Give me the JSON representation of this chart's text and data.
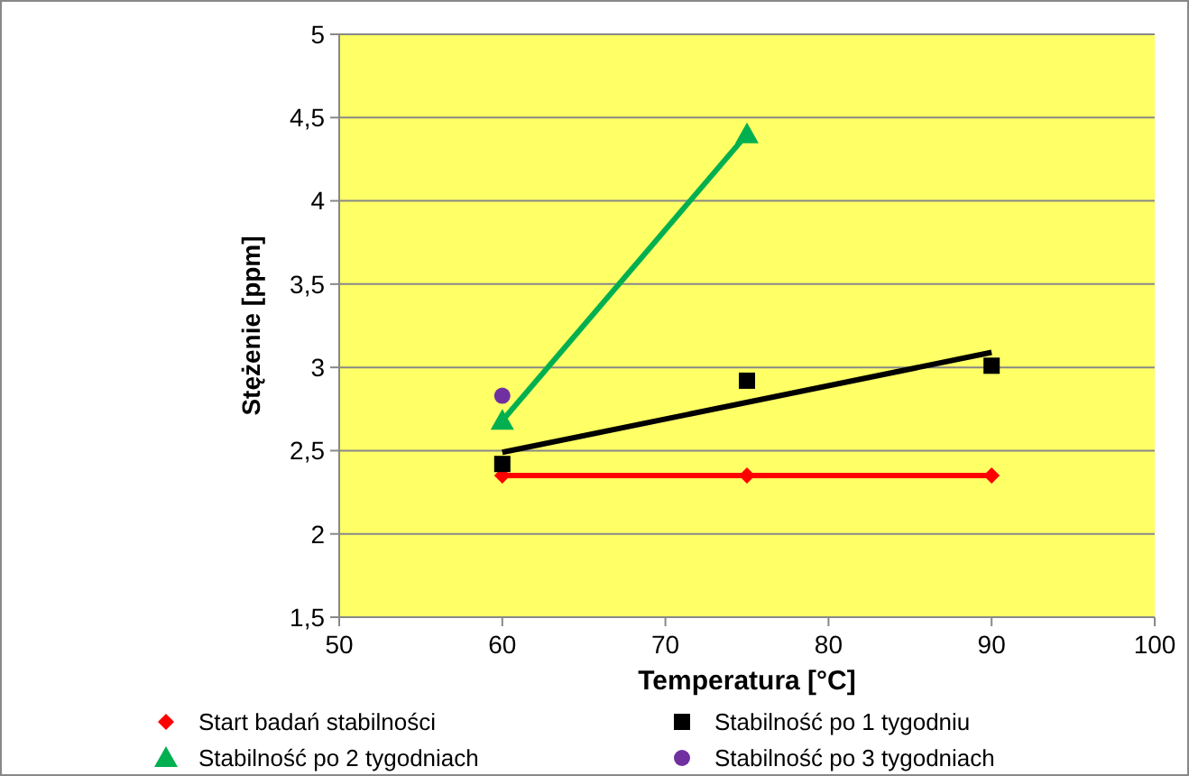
{
  "chart_data": {
    "type": "scatter",
    "xlabel": "Temperatura [°C]",
    "ylabel": "Stężenie [ppm]",
    "x": [
      60,
      75,
      90
    ],
    "xlim": [
      50,
      100
    ],
    "xticks": [
      50,
      60,
      70,
      80,
      90,
      100
    ],
    "ylim": [
      1.5,
      5
    ],
    "yticks": [
      {
        "value": 1.5,
        "label": "1,5"
      },
      {
        "value": 2,
        "label": "2"
      },
      {
        "value": 2.5,
        "label": "2,5"
      },
      {
        "value": 3,
        "label": "3"
      },
      {
        "value": 3.5,
        "label": "3,5"
      },
      {
        "value": 4,
        "label": "4"
      },
      {
        "value": 4.5,
        "label": "4,5"
      },
      {
        "value": 5,
        "label": "5"
      }
    ],
    "grid": "y",
    "legend": "bottom",
    "series": [
      {
        "name": "Start badań stabilności",
        "type": "line",
        "color": "#ff0000",
        "marker": "diamond",
        "values": [
          2.35,
          2.35,
          2.35
        ]
      },
      {
        "name": "Stabilność po 1 tygodniu",
        "color": "#000000",
        "marker": "square",
        "values": [
          2.42,
          2.92,
          3.01
        ]
      },
      {
        "name": "Stabilność po 2 tygodniach",
        "type": "line",
        "color": "#00b050",
        "marker": "triangle",
        "x": [
          60,
          75
        ],
        "values": [
          2.68,
          4.4
        ]
      },
      {
        "name": "Stabilność po 3 tygodniach",
        "color": "#7030a0",
        "marker": "circle",
        "x": [
          60
        ],
        "values": [
          2.83
        ]
      },
      {
        "type": "line",
        "color": "#000000",
        "marker": "none",
        "x": [
          60,
          90
        ],
        "values": [
          2.49,
          3.09
        ]
      }
    ]
  }
}
